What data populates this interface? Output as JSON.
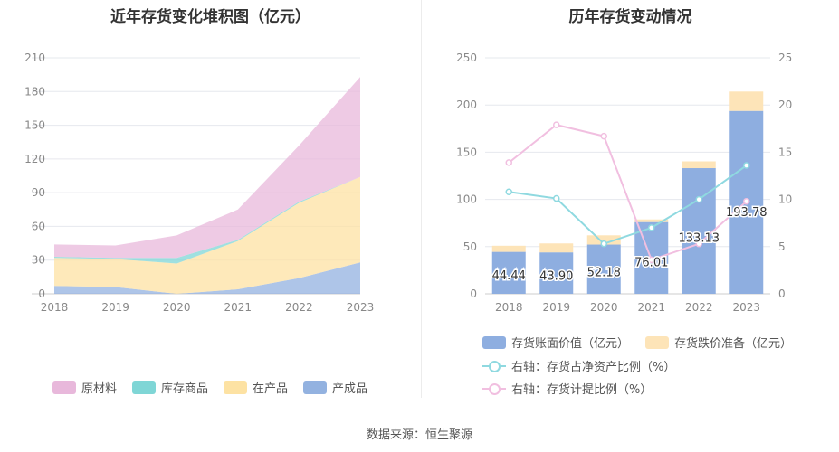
{
  "left_chart": {
    "title": "近年存货变化堆积图（亿元）",
    "legend": [
      {
        "label": "原材料",
        "color": "#e8b8db"
      },
      {
        "label": "库存商品",
        "color": "#7fd6d6"
      },
      {
        "label": "在产品",
        "color": "#fde2a3"
      },
      {
        "label": "产成品",
        "color": "#93b2e0"
      }
    ]
  },
  "right_chart": {
    "title": "历年存货变动情况",
    "legend": [
      {
        "label": "存货账面价值（亿元）",
        "color": "#8eaee0"
      },
      {
        "label": "存货跌价准备（亿元）",
        "color": "#fde4b8"
      },
      {
        "label": "右轴：存货占净资产比例（%）",
        "color": "#8fd9e0"
      },
      {
        "label": "右轴：存货计提比例（%）",
        "color": "#f1bfe0"
      }
    ]
  },
  "footer": "数据来源：恒生聚源",
  "chart_data": [
    {
      "type": "area",
      "title": "近年存货变化堆积图（亿元）",
      "stacked": true,
      "categories": [
        "2018",
        "2019",
        "2020",
        "2021",
        "2022",
        "2023"
      ],
      "ylim": [
        0,
        210
      ],
      "yticks": [
        0,
        30,
        60,
        90,
        120,
        150,
        180,
        210
      ],
      "series": [
        {
          "name": "产成品",
          "values": [
            7,
            6,
            0,
            4,
            14,
            28
          ]
        },
        {
          "name": "在产品",
          "values": [
            25,
            25,
            27,
            43,
            67,
            76
          ]
        },
        {
          "name": "库存商品",
          "values": [
            1,
            1,
            5,
            1,
            1,
            0
          ]
        },
        {
          "name": "原材料",
          "values": [
            11,
            11,
            20,
            27,
            50,
            89
          ]
        }
      ]
    },
    {
      "type": "bar",
      "title": "历年存货变动情况",
      "stacked": true,
      "categories": [
        "2018",
        "2019",
        "2020",
        "2021",
        "2022",
        "2023"
      ],
      "ylim": [
        0,
        250
      ],
      "yticks": [
        0,
        50,
        100,
        150,
        200,
        250
      ],
      "y2lim": [
        0,
        25
      ],
      "y2ticks": [
        0,
        5,
        10,
        15,
        20,
        25
      ],
      "series": [
        {
          "name": "存货账面价值（亿元）",
          "values": [
            44.44,
            43.9,
            52.18,
            76.01,
            133.13,
            193.78
          ],
          "labels": [
            "44.44",
            "43.90",
            "52.18",
            "76.01",
            "133.13",
            "193.78"
          ]
        },
        {
          "name": "存货跌价准备（亿元）",
          "values": [
            6.5,
            9.5,
            9.8,
            2.8,
            7.2,
            20.5
          ]
        },
        {
          "name": "右轴：存货占净资产比例（%）",
          "type": "line",
          "axis": "right",
          "values": [
            10.8,
            10.1,
            5.3,
            7.0,
            10.0,
            13.6
          ]
        },
        {
          "name": "右轴：存货计提比例（%）",
          "type": "line",
          "axis": "right",
          "values": [
            13.9,
            17.9,
            16.7,
            3.6,
            5.3,
            9.8
          ]
        }
      ]
    }
  ]
}
